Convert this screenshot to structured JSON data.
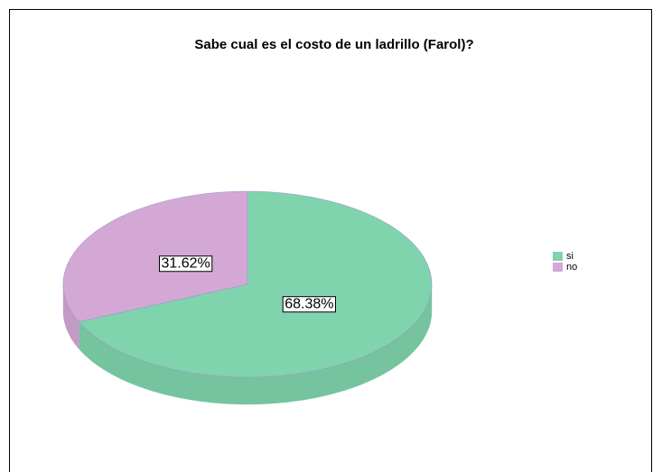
{
  "chart_data": {
    "type": "pie",
    "title": "Sabe cual es el costo de un ladrillo (Farol)?",
    "categories": [
      "si",
      "no"
    ],
    "values": [
      68.38,
      31.62
    ],
    "value_labels": [
      "68.38%",
      "31.62%"
    ],
    "colors": [
      "#80d4ad",
      "#d4a8d4"
    ],
    "legend": "right"
  }
}
